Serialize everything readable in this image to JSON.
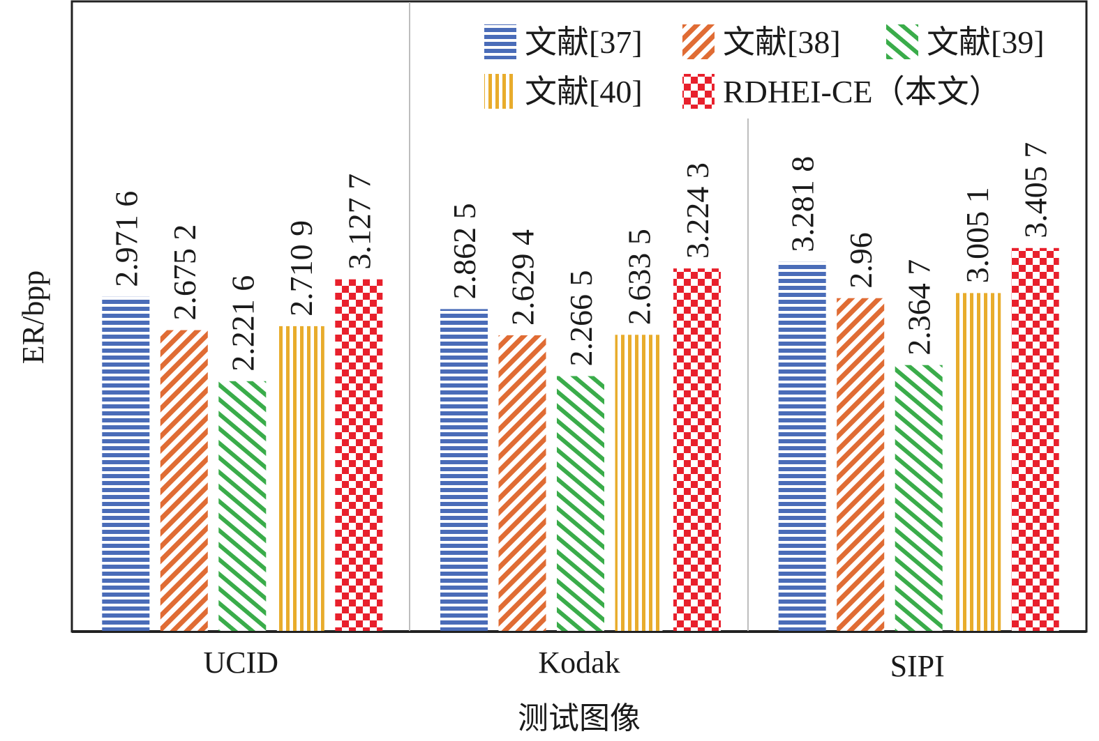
{
  "chart_data": {
    "type": "bar",
    "title": "",
    "xlabel": "测试图像",
    "ylabel": "ER/bpp",
    "ylim": [
      0,
      5.6
    ],
    "grid": false,
    "y_ticks_shown": false,
    "legend_position": "top-right",
    "categories": [
      "UCID",
      "Kodak",
      "SIPI"
    ],
    "series": [
      {
        "name": "文献[37]",
        "color": "#4a6cb8",
        "pattern": "horizontal-stripes",
        "values": [
          2.9716,
          2.8625,
          3.2818
        ],
        "labels": [
          "2.971 6",
          "2.862 5",
          "3.281 8"
        ]
      },
      {
        "name": "文献[38]",
        "color": "#e06c34",
        "pattern": "diagonal-down",
        "values": [
          2.6752,
          2.6294,
          2.96
        ],
        "labels": [
          "2.675 2",
          "2.629 4",
          "2.96"
        ]
      },
      {
        "name": "文献[39]",
        "color": "#3aac4a",
        "pattern": "diagonal-up",
        "values": [
          2.2216,
          2.2665,
          2.3647
        ],
        "labels": [
          "2.221 6",
          "2.266 5",
          "2.364 7"
        ]
      },
      {
        "name": "文献[40]",
        "color": "#e8ac2c",
        "pattern": "vertical-stripes",
        "values": [
          2.7109,
          2.6335,
          3.0051
        ],
        "labels": [
          "2.710 9",
          "2.633 5",
          "3.005 1"
        ]
      },
      {
        "name": "RDHEI-CE（本文）",
        "color": "#e8202c",
        "pattern": "checkerboard",
        "values": [
          3.1277,
          3.2243,
          3.4057
        ],
        "labels": [
          "3.127 7",
          "3.224 3",
          "3.405 7"
        ]
      }
    ]
  }
}
